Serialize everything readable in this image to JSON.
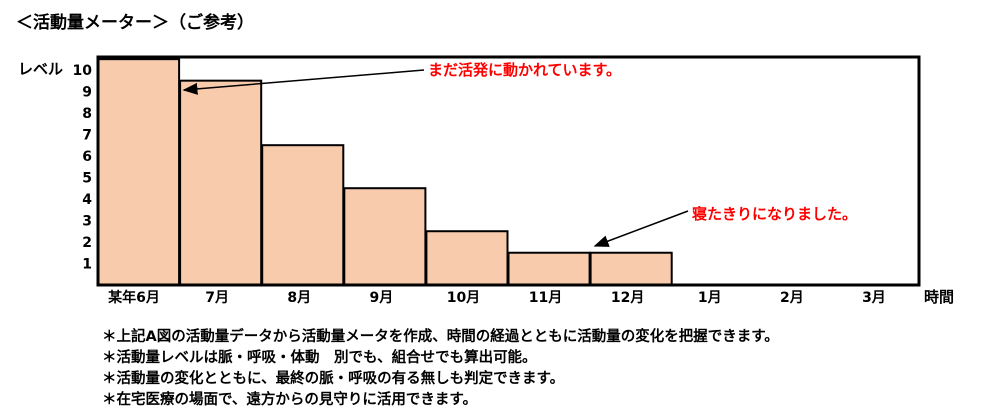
{
  "title": "＜活動量メーター＞（ご参考）",
  "colors": {
    "bar_fill": "#F8CBAD",
    "bar_stroke": "#000000",
    "annotation_text": "#FF0000",
    "axis": "#000000"
  },
  "chart_data": {
    "type": "bar",
    "ylabel": "レベル",
    "xlabel": "時間",
    "yticks": [
      1,
      2,
      3,
      4,
      5,
      6,
      7,
      8,
      9,
      10
    ],
    "ylim": [
      0,
      10.6
    ],
    "categories": [
      "某年6月",
      "7月",
      "8月",
      "9月",
      "10月",
      "11月",
      "12月",
      "1月",
      "2月",
      "3月"
    ],
    "values": [
      10.5,
      9.5,
      6.5,
      4.5,
      2.5,
      1.5,
      1.5,
      0,
      0,
      0
    ],
    "annotations": [
      {
        "text": "まだ活発に動かれています。",
        "target_category": "某年6月"
      },
      {
        "text": "寝たきりになりました。",
        "target_category": "12月"
      }
    ],
    "grid": false,
    "legend": "none"
  },
  "notes": [
    "＊上記A図の活動量データから活動量メータを作成、時間の経過とともに活動量の変化を把握できます。",
    "＊活動量レベルは脈・呼吸・体動　別でも、組合せでも算出可能。",
    "＊活動量の変化とともに、最終の脈・呼吸の有る無しも判定できます。",
    "＊在宅医療の場面で、遠方からの見守りに活用できます。"
  ]
}
